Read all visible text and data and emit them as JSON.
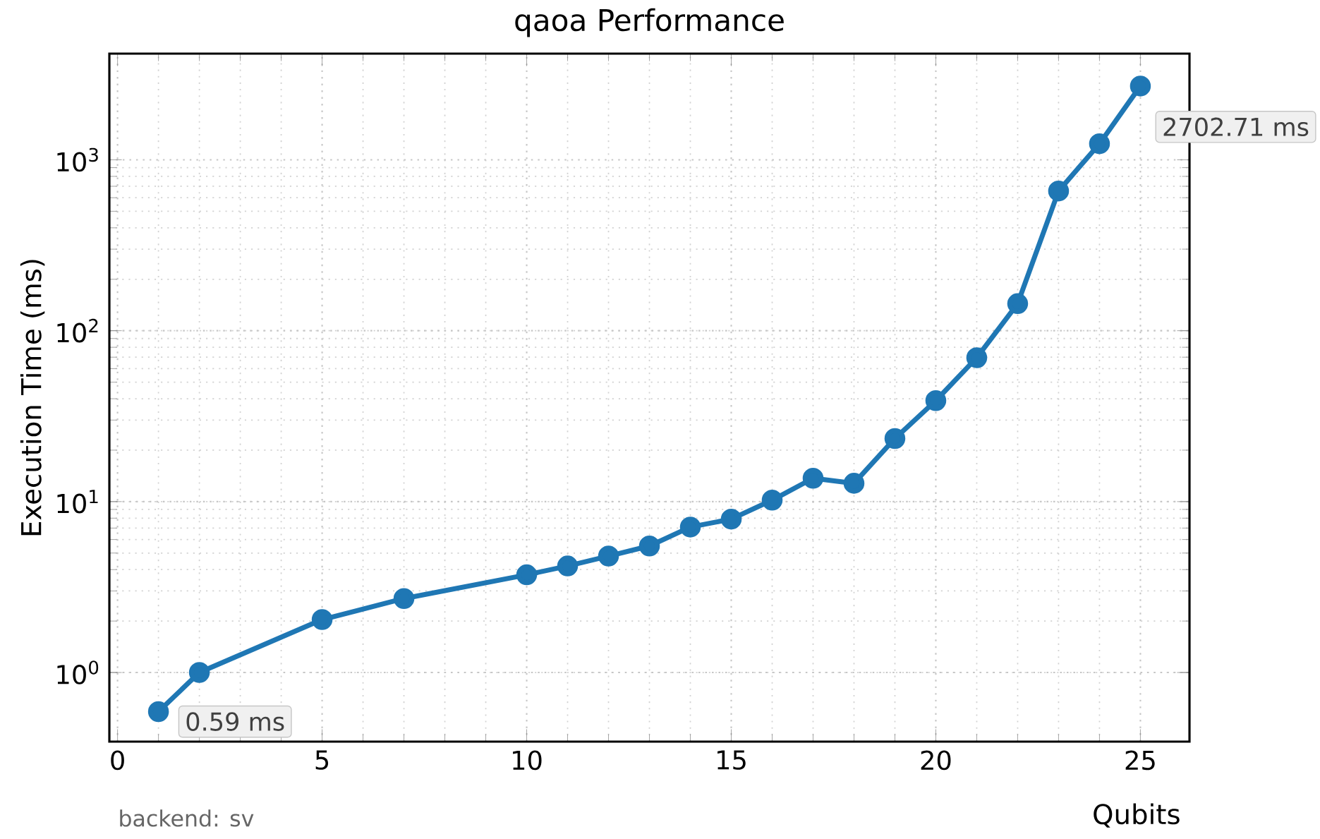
{
  "chart_data": {
    "type": "line",
    "title": "qaoa Performance",
    "xlabel": "Qubits",
    "ylabel": "Execution Time (ms)",
    "x": [
      1,
      2,
      5,
      7,
      10,
      11,
      12,
      13,
      14,
      15,
      16,
      17,
      18,
      19,
      20,
      21,
      22,
      23,
      24,
      25
    ],
    "series": [
      {
        "color": "#1f77b4",
        "values": [
          0.59,
          1.0,
          2.04,
          2.71,
          3.73,
          4.2,
          4.8,
          5.5,
          7.1,
          7.9,
          10.2,
          13.7,
          12.8,
          23.4,
          39,
          69.5,
          144,
          657,
          1242,
          2702.71
        ]
      }
    ],
    "log": "y",
    "grid": true,
    "marker": "circle",
    "line_style": "solid",
    "xlim": [
      -0.2,
      26.2
    ],
    "xticks": [
      0,
      5,
      10,
      15,
      20,
      25
    ],
    "ylim": [
      0.394,
      4180
    ],
    "yticks": [
      {
        "value": 1,
        "label": "10$^{0}$"
      },
      {
        "value": 10,
        "label": "10$^{1}$"
      },
      {
        "value": 100,
        "label": "10$^{2}$"
      },
      {
        "value": 1000,
        "label": "10$^{3}$"
      }
    ],
    "annotations": [
      {
        "text": "0.59 ms",
        "x": 1,
        "y": 0.59
      },
      {
        "text": "2702.71 ms",
        "x": 25,
        "y": 2702.71
      },
      "backend: sv"
    ]
  }
}
